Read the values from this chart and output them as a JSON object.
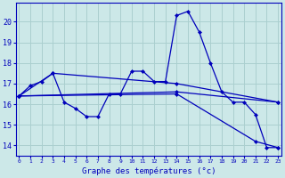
{
  "xlabel": "Graphe des températures (°c)",
  "background_color": "#cce8e8",
  "grid_color": "#aacfcf",
  "line_color": "#0000bb",
  "ylim": [
    13.5,
    20.9
  ],
  "xlim": [
    -0.3,
    23.3
  ],
  "yticks": [
    14,
    15,
    16,
    17,
    18,
    19,
    20
  ],
  "xticks": [
    0,
    1,
    2,
    3,
    4,
    5,
    6,
    7,
    8,
    9,
    10,
    11,
    12,
    13,
    14,
    15,
    16,
    17,
    18,
    19,
    20,
    21,
    22,
    23
  ],
  "series": [
    {
      "x": [
        0,
        1,
        2,
        3,
        4,
        5,
        6,
        7,
        8,
        9,
        10,
        11,
        12,
        13,
        14,
        15,
        16,
        17,
        18,
        19,
        20,
        21,
        22,
        23
      ],
      "y": [
        16.4,
        16.9,
        17.1,
        17.5,
        16.1,
        15.8,
        15.4,
        15.4,
        16.5,
        16.5,
        17.6,
        17.6,
        17.1,
        17.1,
        20.3,
        20.5,
        19.5,
        18.0,
        16.6,
        16.1,
        16.1,
        15.5,
        13.9,
        13.9
      ]
    },
    {
      "x": [
        0,
        3,
        14,
        23
      ],
      "y": [
        16.4,
        17.5,
        17.0,
        16.1
      ]
    },
    {
      "x": [
        0,
        14,
        23
      ],
      "y": [
        16.4,
        16.6,
        16.1
      ]
    },
    {
      "x": [
        0,
        14,
        21,
        23
      ],
      "y": [
        16.4,
        16.5,
        14.2,
        13.9
      ]
    }
  ]
}
